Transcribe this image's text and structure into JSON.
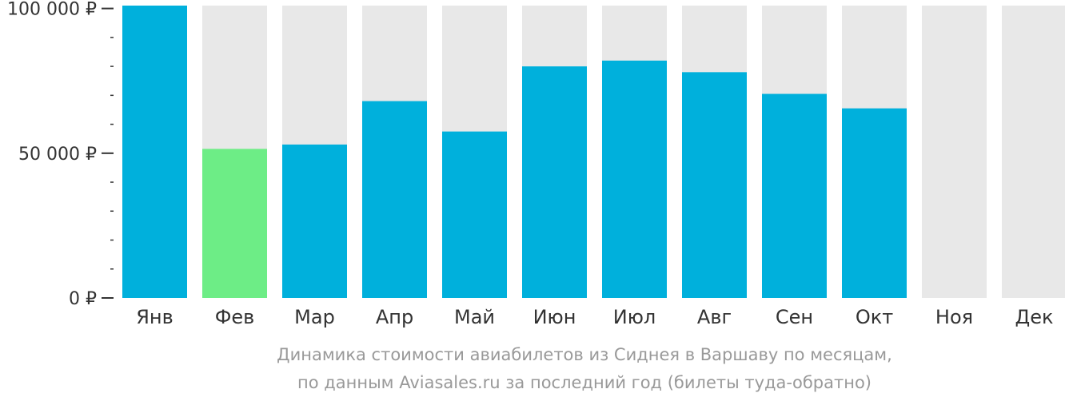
{
  "colors": {
    "bar": "#00b0dc",
    "highlight": "#6ded86",
    "background_bar": "#e8e8e8",
    "axis_text": "#333333",
    "caption_text": "#999999"
  },
  "caption": {
    "line1": "Динамика стоимости авиабилетов из Сиднея в Варшаву по месяцам,",
    "line2": "по данным Aviasales.ru за последний год (билеты туда-обратно)"
  },
  "chart_data": {
    "type": "bar",
    "title": "",
    "xlabel": "",
    "ylabel": "",
    "categories": [
      "Янв",
      "Фев",
      "Мар",
      "Апр",
      "Май",
      "Июн",
      "Июл",
      "Авг",
      "Сен",
      "Окт",
      "Ноя",
      "Дек"
    ],
    "values": [
      101000,
      51500,
      53000,
      68000,
      57500,
      80000,
      82000,
      78000,
      70500,
      65500,
      null,
      null
    ],
    "highlight_index": 1,
    "ylim": [
      0,
      101000
    ],
    "y_ticks": [
      {
        "value": 0,
        "label": "0 ₽"
      },
      {
        "value": 50000,
        "label": "50 000 ₽"
      },
      {
        "value": 100000,
        "label": "100 000 ₽"
      }
    ],
    "y_minor_step": 10000,
    "grid": false,
    "legend": "none"
  }
}
